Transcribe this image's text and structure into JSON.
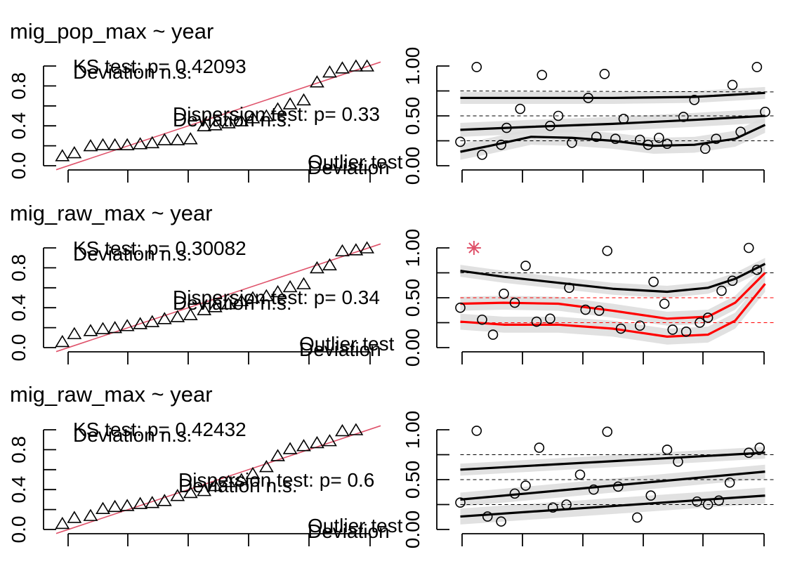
{
  "colors": {
    "line_ref": "#df536b",
    "quantile_bad": "#ff0000",
    "spline_ok": "#000000",
    "band": "#dcdcdc",
    "outlier": "#df536b"
  },
  "chart_data": [
    {
      "type": "scatter",
      "title": "mig_pop_max ~ year",
      "qq": {
        "points": [
          [
            0.019,
            0.1
          ],
          [
            0.056,
            0.13
          ],
          [
            0.106,
            0.2
          ],
          [
            0.144,
            0.21
          ],
          [
            0.181,
            0.21
          ],
          [
            0.219,
            0.21
          ],
          [
            0.259,
            0.22
          ],
          [
            0.296,
            0.23
          ],
          [
            0.334,
            0.26
          ],
          [
            0.374,
            0.26
          ],
          [
            0.414,
            0.27
          ],
          [
            0.456,
            0.4
          ],
          [
            0.49,
            0.41
          ],
          [
            0.531,
            0.43
          ],
          [
            0.571,
            0.45
          ],
          [
            0.606,
            0.48
          ],
          [
            0.648,
            0.5
          ],
          [
            0.683,
            0.57
          ],
          [
            0.721,
            0.62
          ],
          [
            0.763,
            0.66
          ],
          [
            0.804,
            0.84
          ],
          [
            0.843,
            0.94
          ],
          [
            0.882,
            0.98
          ],
          [
            0.924,
            1.0
          ],
          [
            0.958,
            1.0
          ]
        ],
        "y_ticks": [
          "0.0",
          "0.4",
          "0.8"
        ],
        "annotations": {
          "ks": "KS test: p= 0.42093",
          "ks_dev": "Deviation n.s.",
          "disp": "Dispersion test: p= 0.33",
          "disp_dev": "Deviation n.s.",
          "outlier": "Outlier test",
          "outlier_dev": "Deviation"
        }
      },
      "residual": {
        "y_ticks": [
          "0.00",
          "0.50",
          "1.00"
        ],
        "points": [
          [
            0.04,
            0.24
          ],
          [
            0.1,
            0.99
          ],
          [
            0.12,
            0.11
          ],
          [
            0.19,
            0.21
          ],
          [
            0.21,
            0.38
          ],
          [
            0.26,
            0.57
          ],
          [
            0.34,
            0.91
          ],
          [
            0.37,
            0.4
          ],
          [
            0.4,
            0.5
          ],
          [
            0.45,
            0.23
          ],
          [
            0.51,
            0.68
          ],
          [
            0.54,
            0.29
          ],
          [
            0.57,
            0.92
          ],
          [
            0.61,
            0.27
          ],
          [
            0.64,
            0.47
          ],
          [
            0.7,
            0.26
          ],
          [
            0.73,
            0.21
          ],
          [
            0.77,
            0.28
          ],
          [
            0.8,
            0.22
          ],
          [
            0.86,
            0.49
          ],
          [
            0.9,
            0.66
          ],
          [
            0.94,
            0.17
          ],
          [
            0.98,
            0.27
          ],
          [
            1.04,
            0.81
          ],
          [
            1.07,
            0.34
          ],
          [
            1.13,
            0.99
          ],
          [
            1.16,
            0.54
          ]
        ],
        "quantiles": [
          {
            "color": "spline_ok",
            "values": [
              [
                0.04,
                0.75
              ],
              [
                1.16,
                0.74
              ]
            ]
          },
          {
            "color": "spline_ok",
            "values": [
              [
                0.04,
                0.5
              ],
              [
                1.16,
                0.5
              ]
            ]
          },
          {
            "color": "spline_ok",
            "values": [
              [
                0.04,
                0.25
              ],
              [
                1.16,
                0.25
              ]
            ]
          }
        ],
        "bands": [
          [
            0.04,
            0.86,
            0.64
          ],
          [
            0.35,
            0.87,
            0.64
          ],
          [
            0.6,
            0.87,
            0.64
          ],
          [
            0.9,
            0.87,
            0.64
          ],
          [
            1.16,
            0.92,
            0.6
          ]
        ],
        "splines": [
          {
            "color": "spline_ok",
            "values": [
              [
                0.04,
                0.68
              ],
              [
                0.3,
                0.68
              ],
              [
                0.6,
                0.68
              ],
              [
                0.9,
                0.69
              ],
              [
                1.16,
                0.73
              ]
            ]
          },
          {
            "color": "spline_ok",
            "values": [
              [
                0.04,
                0.36
              ],
              [
                0.3,
                0.39
              ],
              [
                0.6,
                0.42
              ],
              [
                0.9,
                0.46
              ],
              [
                1.16,
                0.5
              ]
            ]
          },
          {
            "color": "spline_ok",
            "values": [
              [
                0.04,
                0.14
              ],
              [
                0.15,
                0.2
              ],
              [
                0.3,
                0.29
              ],
              [
                0.45,
                0.28
              ],
              [
                0.6,
                0.25
              ],
              [
                0.75,
                0.2
              ],
              [
                0.9,
                0.21
              ],
              [
                1.05,
                0.27
              ],
              [
                1.16,
                0.41
              ]
            ]
          }
        ],
        "outliers": []
      }
    },
    {
      "type": "scatter",
      "title": "mig_raw_max ~ year",
      "qq": {
        "points": [
          [
            0.019,
            0.06
          ],
          [
            0.056,
            0.14
          ],
          [
            0.106,
            0.17
          ],
          [
            0.144,
            0.19
          ],
          [
            0.181,
            0.2
          ],
          [
            0.219,
            0.22
          ],
          [
            0.259,
            0.24
          ],
          [
            0.296,
            0.26
          ],
          [
            0.334,
            0.29
          ],
          [
            0.374,
            0.31
          ],
          [
            0.414,
            0.33
          ],
          [
            0.456,
            0.38
          ],
          [
            0.49,
            0.41
          ],
          [
            0.531,
            0.44
          ],
          [
            0.571,
            0.47
          ],
          [
            0.606,
            0.5
          ],
          [
            0.648,
            0.52
          ],
          [
            0.683,
            0.56
          ],
          [
            0.721,
            0.61
          ],
          [
            0.763,
            0.64
          ],
          [
            0.804,
            0.8
          ],
          [
            0.843,
            0.83
          ],
          [
            0.882,
            0.97
          ],
          [
            0.924,
            0.98
          ],
          [
            0.958,
            1.0
          ]
        ],
        "y_ticks": [
          "0.0",
          "0.4",
          "0.8"
        ],
        "annotations": {
          "ks": "KS test: p= 0.30082",
          "ks_dev": "Deviation n.s.",
          "disp": "Dispersion test: p= 0.34",
          "disp_dev": "Deviation n.s.",
          "outlier": "Outlier test",
          "outlier_dev": "Deviation"
        }
      },
      "residual": {
        "y_ticks": [
          "0.00",
          "0.50",
          "1.00"
        ],
        "points": [
          [
            0.04,
            0.4
          ],
          [
            0.12,
            0.28
          ],
          [
            0.16,
            0.13
          ],
          [
            0.2,
            0.54
          ],
          [
            0.24,
            0.45
          ],
          [
            0.28,
            0.82
          ],
          [
            0.32,
            0.26
          ],
          [
            0.37,
            0.29
          ],
          [
            0.44,
            0.6
          ],
          [
            0.5,
            0.38
          ],
          [
            0.55,
            0.37
          ],
          [
            0.58,
            0.97
          ],
          [
            0.63,
            0.19
          ],
          [
            0.7,
            0.22
          ],
          [
            0.75,
            0.66
          ],
          [
            0.79,
            0.44
          ],
          [
            0.82,
            0.18
          ],
          [
            0.87,
            0.16
          ],
          [
            0.92,
            0.25
          ],
          [
            0.95,
            0.3
          ],
          [
            1.0,
            0.57
          ],
          [
            1.04,
            0.67
          ],
          [
            1.1,
            1.0
          ],
          [
            1.13,
            0.78
          ]
        ],
        "quantiles": [
          {
            "color": "spline_ok",
            "values": [
              [
                0.04,
                0.75
              ],
              [
                1.16,
                0.75
              ]
            ]
          },
          {
            "color": "quantile_bad",
            "values": [
              [
                0.04,
                0.5
              ],
              [
                1.16,
                0.5
              ]
            ]
          },
          {
            "color": "quantile_bad",
            "values": [
              [
                0.04,
                0.25
              ],
              [
                1.16,
                0.25
              ]
            ]
          }
        ],
        "bands": [
          [
            0.04,
            0.86,
            0.42
          ],
          [
            0.3,
            0.82,
            0.38
          ],
          [
            0.6,
            0.75,
            0.34
          ],
          [
            0.85,
            0.76,
            0.3
          ],
          [
            1.0,
            0.85,
            0.42
          ],
          [
            1.16,
            0.99,
            0.66
          ]
        ],
        "splines": [
          {
            "color": "spline_ok",
            "values": [
              [
                0.04,
                0.77
              ],
              [
                0.2,
                0.71
              ],
              [
                0.4,
                0.65
              ],
              [
                0.6,
                0.59
              ],
              [
                0.8,
                0.56
              ],
              [
                0.95,
                0.6
              ],
              [
                1.05,
                0.69
              ],
              [
                1.16,
                0.84
              ]
            ]
          },
          {
            "color": "quantile_bad",
            "values": [
              [
                0.04,
                0.44
              ],
              [
                0.2,
                0.45
              ],
              [
                0.4,
                0.44
              ],
              [
                0.6,
                0.37
              ],
              [
                0.8,
                0.29
              ],
              [
                0.95,
                0.31
              ],
              [
                1.05,
                0.45
              ],
              [
                1.16,
                0.75
              ]
            ]
          },
          {
            "color": "quantile_bad",
            "values": [
              [
                0.04,
                0.26
              ],
              [
                0.2,
                0.23
              ],
              [
                0.4,
                0.23
              ],
              [
                0.6,
                0.19
              ],
              [
                0.8,
                0.11
              ],
              [
                0.95,
                0.13
              ],
              [
                1.05,
                0.27
              ],
              [
                1.16,
                0.64
              ]
            ]
          }
        ],
        "outliers": [
          [
            0.09,
            1.0
          ]
        ]
      }
    },
    {
      "type": "scatter",
      "title": "mig_raw_max ~ year",
      "qq": {
        "points": [
          [
            0.019,
            0.06
          ],
          [
            0.056,
            0.12
          ],
          [
            0.106,
            0.14
          ],
          [
            0.144,
            0.21
          ],
          [
            0.181,
            0.23
          ],
          [
            0.219,
            0.24
          ],
          [
            0.259,
            0.26
          ],
          [
            0.296,
            0.27
          ],
          [
            0.334,
            0.29
          ],
          [
            0.374,
            0.34
          ],
          [
            0.414,
            0.37
          ],
          [
            0.456,
            0.39
          ],
          [
            0.49,
            0.44
          ],
          [
            0.531,
            0.48
          ],
          [
            0.571,
            0.5
          ],
          [
            0.606,
            0.56
          ],
          [
            0.648,
            0.63
          ],
          [
            0.683,
            0.74
          ],
          [
            0.721,
            0.81
          ],
          [
            0.763,
            0.84
          ],
          [
            0.804,
            0.87
          ],
          [
            0.843,
            0.89
          ],
          [
            0.882,
            0.99
          ],
          [
            0.924,
            1.0
          ]
        ],
        "y_ticks": [
          "0.0",
          "0.4",
          "0.8"
        ],
        "annotations": {
          "ks": "KS test: p= 0.42432",
          "ks_dev": "Deviation n.s.",
          "disp": "Dispersion test: p= 0.6",
          "disp_dev": "Deviation n.s.",
          "outlier": "Outlier test",
          "outlier_dev": "Deviation"
        }
      },
      "residual": {
        "y_ticks": [
          "0.00",
          "0.50",
          "1.00"
        ],
        "points": [
          [
            0.04,
            0.27
          ],
          [
            0.1,
            0.99
          ],
          [
            0.14,
            0.13
          ],
          [
            0.19,
            0.08
          ],
          [
            0.24,
            0.36
          ],
          [
            0.28,
            0.44
          ],
          [
            0.33,
            0.82
          ],
          [
            0.38,
            0.22
          ],
          [
            0.43,
            0.25
          ],
          [
            0.48,
            0.55
          ],
          [
            0.53,
            0.4
          ],
          [
            0.58,
            0.98
          ],
          [
            0.62,
            0.43
          ],
          [
            0.69,
            0.12
          ],
          [
            0.74,
            0.34
          ],
          [
            0.8,
            0.8
          ],
          [
            0.84,
            0.68
          ],
          [
            0.91,
            0.28
          ],
          [
            0.95,
            0.25
          ],
          [
            0.99,
            0.29
          ],
          [
            1.03,
            0.47
          ],
          [
            1.1,
            0.77
          ],
          [
            1.14,
            0.82
          ]
        ],
        "quantiles": [
          {
            "color": "spline_ok",
            "values": [
              [
                0.04,
                0.75
              ],
              [
                1.16,
                0.75
              ]
            ]
          },
          {
            "color": "spline_ok",
            "values": [
              [
                0.04,
                0.5
              ],
              [
                1.16,
                0.5
              ]
            ]
          },
          {
            "color": "spline_ok",
            "values": [
              [
                0.04,
                0.25
              ],
              [
                1.16,
                0.25
              ]
            ]
          }
        ],
        "bands": [
          [
            0.04,
            0.76,
            0.44
          ],
          [
            0.35,
            0.78,
            0.45
          ],
          [
            0.6,
            0.8,
            0.47
          ],
          [
            0.9,
            0.83,
            0.49
          ],
          [
            1.16,
            0.88,
            0.52
          ]
        ],
        "splines": [
          {
            "color": "spline_ok",
            "values": [
              [
                0.04,
                0.6
              ],
              [
                1.16,
                0.77
              ]
            ]
          },
          {
            "color": "spline_ok",
            "values": [
              [
                0.04,
                0.3
              ],
              [
                1.16,
                0.58
              ]
            ]
          },
          {
            "color": "spline_ok",
            "values": [
              [
                0.04,
                0.13
              ],
              [
                1.16,
                0.34
              ]
            ]
          }
        ],
        "outliers": []
      }
    }
  ]
}
